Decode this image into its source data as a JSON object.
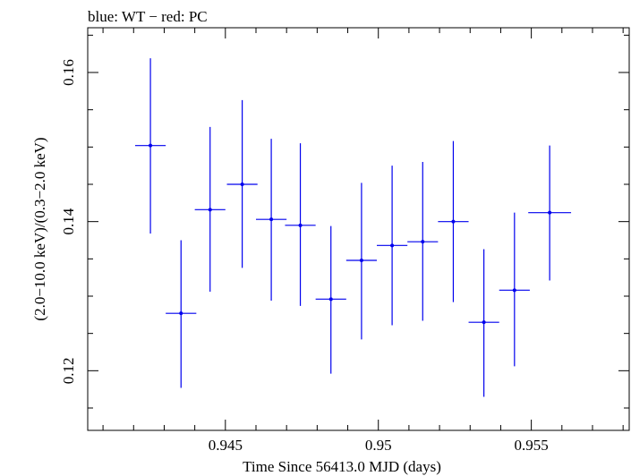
{
  "chart_data": {
    "type": "scatter",
    "title": "blue: WT − red: PC",
    "xlabel": "Time Since 56413.0 MJD (days)",
    "ylabel": "(2.0−10.0 keV)/(0.3−2.0 keV)",
    "xlim": [
      0.9405,
      0.9582
    ],
    "ylim": [
      0.112,
      0.166
    ],
    "x_ticks": [
      0.945,
      0.95,
      0.955
    ],
    "x_tick_labels": [
      "0.945",
      "0.95",
      "0.955"
    ],
    "y_ticks": [
      0.12,
      0.14,
      0.16
    ],
    "y_tick_labels": [
      "0.12",
      "0.14",
      "0.16"
    ],
    "series": [
      {
        "name": "WT",
        "color": "#0000ee",
        "points": [
          {
            "x": 0.94255,
            "xerr": 0.0005,
            "y": 0.1502,
            "yerr_low": 0.0118,
            "yerr_high": 0.0117
          },
          {
            "x": 0.94355,
            "xerr": 0.0005,
            "y": 0.1277,
            "yerr_low": 0.01,
            "yerr_high": 0.0098
          },
          {
            "x": 0.9445,
            "xerr": 0.0005,
            "y": 0.1416,
            "yerr_low": 0.011,
            "yerr_high": 0.0111
          },
          {
            "x": 0.94555,
            "xerr": 0.0005,
            "y": 0.145,
            "yerr_low": 0.0112,
            "yerr_high": 0.0113
          },
          {
            "x": 0.9465,
            "xerr": 0.0005,
            "y": 0.1403,
            "yerr_low": 0.0109,
            "yerr_high": 0.0108
          },
          {
            "x": 0.94745,
            "xerr": 0.0005,
            "y": 0.1395,
            "yerr_low": 0.0108,
            "yerr_high": 0.011
          },
          {
            "x": 0.94845,
            "xerr": 0.0005,
            "y": 0.1296,
            "yerr_low": 0.01,
            "yerr_high": 0.0098
          },
          {
            "x": 0.94945,
            "xerr": 0.0005,
            "y": 0.1348,
            "yerr_low": 0.0106,
            "yerr_high": 0.0104
          },
          {
            "x": 0.95045,
            "xerr": 0.0005,
            "y": 0.1368,
            "yerr_low": 0.0107,
            "yerr_high": 0.0107
          },
          {
            "x": 0.95145,
            "xerr": 0.0005,
            "y": 0.1373,
            "yerr_low": 0.0106,
            "yerr_high": 0.0107
          },
          {
            "x": 0.95245,
            "xerr": 0.0005,
            "y": 0.14,
            "yerr_low": 0.0108,
            "yerr_high": 0.0108
          },
          {
            "x": 0.95345,
            "xerr": 0.0005,
            "y": 0.1265,
            "yerr_low": 0.01,
            "yerr_high": 0.0098
          },
          {
            "x": 0.95445,
            "xerr": 0.0005,
            "y": 0.1308,
            "yerr_low": 0.0102,
            "yerr_high": 0.0104
          },
          {
            "x": 0.9556,
            "xerr": 0.0007,
            "y": 0.1412,
            "yerr_low": 0.0091,
            "yerr_high": 0.009
          }
        ]
      }
    ]
  }
}
